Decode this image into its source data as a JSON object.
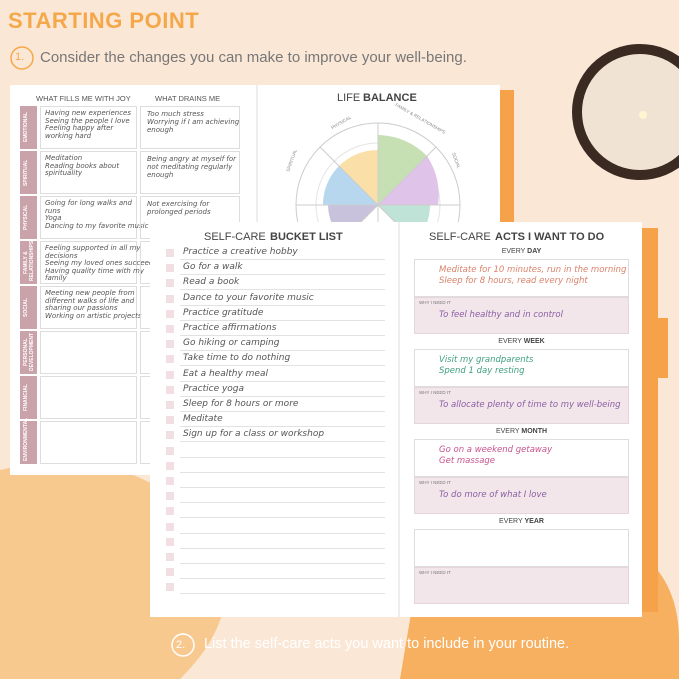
{
  "header": {
    "title": "STARTING POINT",
    "step": "1.",
    "text": "Consider the changes you can make to improve your well-being."
  },
  "life_areas": {
    "columns": [
      "WHAT FILLS ME WITH JOY",
      "WHAT DRAINS ME"
    ],
    "rows": [
      {
        "label": "EMOTIONAL",
        "joy": [
          "Having new experiences",
          "Seeing the people I love",
          "Feeling happy after",
          "working hard"
        ],
        "drains": [
          "Too much stress",
          "Worrying if I am achieving",
          "enough"
        ]
      },
      {
        "label": "SPIRITUAL",
        "joy": [
          "Meditation",
          "Reading books about",
          "spirituality"
        ],
        "drains": [
          "Being angry at myself for",
          "not meditating regularly",
          "enough"
        ]
      },
      {
        "label": "PHYSICAL",
        "joy": [
          "Going for long walks and",
          "runs",
          "Yoga",
          "Dancing to my favorite music"
        ],
        "drains": [
          "Not exercising for",
          "prolonged periods"
        ]
      },
      {
        "label": "FAMILY & RELATIONSHIPS",
        "joy": [
          "Feeling supported in all my",
          "decisions",
          "Seeing my loved ones succeed",
          "Having quality time with my",
          "family"
        ],
        "drains": []
      },
      {
        "label": "SOCIAL",
        "joy": [
          "Meeting new people from",
          "different walks of life and",
          "sharing our passions",
          "Working on artistic projects"
        ],
        "drains": []
      },
      {
        "label": "PERSONAL DEVELOPMENT",
        "joy": [],
        "drains": []
      },
      {
        "label": "FINANCIAL",
        "joy": [],
        "drains": []
      },
      {
        "label": "ENVIRONMENTAL",
        "joy": [],
        "drains": []
      }
    ]
  },
  "life_balance": {
    "title": [
      "LIFE",
      "BALANCE"
    ],
    "labels": [
      "PHYSICAL",
      "FAMILY & RELATIONSHIPS",
      "SOCIAL",
      "SPIRITUAL"
    ]
  },
  "bucket_list": {
    "title": [
      "SELF-CARE",
      "BUCKET LIST"
    ],
    "items": [
      "Practice a creative hobby",
      "Go for a walk",
      "Read a book",
      "Dance to your favorite music",
      "Practice gratitude",
      "Practice affirmations",
      "Go hiking or camping",
      "Take time to do nothing",
      "Eat a healthy meal",
      "Practice yoga",
      "Sleep for 8 hours or more",
      "Meditate",
      "Sign up for a class or workshop"
    ]
  },
  "acts": {
    "title": [
      "SELF-CARE",
      "ACTS I WANT TO DO"
    ],
    "why_label": "WHY I NEED IT",
    "sections": [
      {
        "every": "EVERY",
        "period": "DAY",
        "acts": [
          "Meditate for 10 minutes, run in the morning",
          "Sleep for 8 hours, read every night"
        ],
        "why": [
          "To feel healthy and in control"
        ],
        "color": "#d9826a"
      },
      {
        "every": "EVERY",
        "period": "WEEK",
        "acts": [
          "Visit my grandparents",
          "Spend 1 day resting"
        ],
        "why": [
          "To allocate plenty of time to my well-being"
        ],
        "color": "#3fa07e"
      },
      {
        "every": "EVERY",
        "period": "MONTH",
        "acts": [
          "Go on a weekend getaway",
          "Get massage"
        ],
        "why": [
          "To do more of what I love"
        ],
        "color": "#c9548e"
      },
      {
        "every": "EVERY",
        "period": "YEAR",
        "acts": [],
        "why": [],
        "color": "#888888"
      }
    ]
  },
  "footer": {
    "step": "2.",
    "text": "List the self-care acts you want to include in your routine."
  }
}
